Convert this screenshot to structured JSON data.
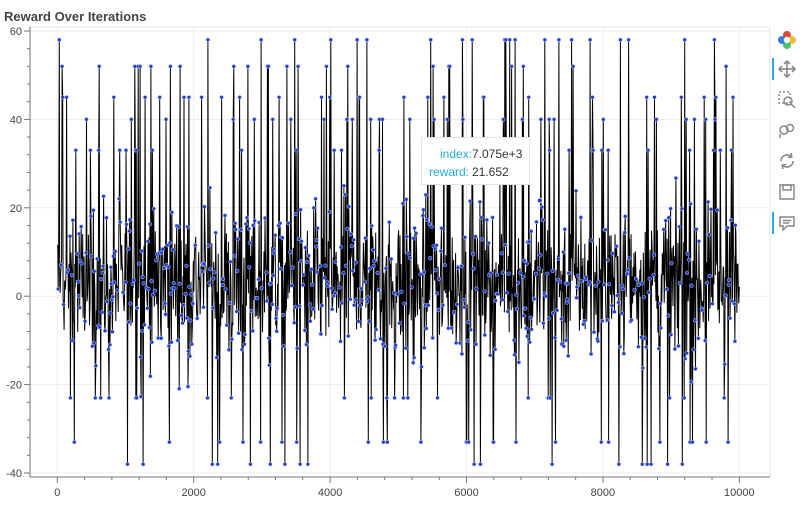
{
  "title": "Reward Over Iterations",
  "tooltip": {
    "index_label": "index:",
    "index_value": "7.075e+3",
    "reward_label": "reward:",
    "reward_value": "21.652"
  },
  "toolbar": {
    "tools": [
      {
        "icon": "bokeh-logo-icon",
        "active": false
      },
      {
        "icon": "pan-icon",
        "active": true
      },
      {
        "icon": "box-zoom-icon",
        "active": false
      },
      {
        "icon": "wheel-zoom-icon",
        "active": false
      },
      {
        "icon": "reset-icon",
        "active": false
      },
      {
        "icon": "save-icon",
        "active": false
      },
      {
        "icon": "hover-icon",
        "active": true
      }
    ]
  },
  "chart_data": {
    "type": "line",
    "title": "Reward Over Iterations",
    "xlabel": "",
    "ylabel": "",
    "xlim": [
      -400,
      10450
    ],
    "ylim": [
      -40,
      60
    ],
    "x_ticks": [
      0,
      2000,
      4000,
      6000,
      8000,
      10000
    ],
    "x_tick_labels": [
      "0",
      "2000",
      "4000",
      "6000",
      "8000",
      "10000"
    ],
    "y_ticks": [
      -40,
      -20,
      0,
      20,
      40,
      60
    ],
    "y_tick_labels": [
      "-40",
      "-20",
      "0",
      "20",
      "40",
      "60"
    ],
    "grid": true,
    "line_color": "#000000",
    "marker_color": "#1f3dbf",
    "series_note": "10000 noisy reward values oscillating between about -38 and 58, centred near 3",
    "n_points": 10000,
    "summary": {
      "min": -38,
      "max": 58,
      "center": 3
    },
    "hover_point": {
      "x": 7075,
      "y": 21.652
    }
  }
}
